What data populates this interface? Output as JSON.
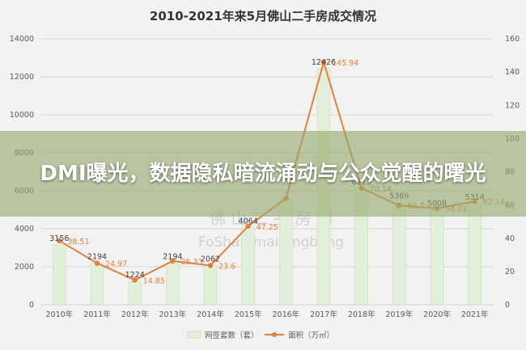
{
  "colors": {
    "bar": "#e2efda",
    "bar_edge": "#c9deb8",
    "line": "#e0813b",
    "grid": "#d4d4d4",
    "banner": "#96aa6e"
  },
  "overlay": {
    "headline": "DMI曝光，数据隐私暗流涌动与公众觉醒的曙光"
  },
  "watermark": {
    "line1": "佛 山 二 手 房 网",
    "line2": "FoShan maifangbang"
  },
  "chart_data": {
    "type": "bar",
    "title": "2010-2021年来5月佛山二手房成交情况",
    "categories": [
      "2010年",
      "2011年",
      "2012年",
      "2013年",
      "2014年",
      "2015年",
      "2016年",
      "2017年",
      "2018年",
      "2019年",
      "2020年",
      "2021年"
    ],
    "series": [
      {
        "name": "网签套数（套）",
        "type": "bar",
        "axis": "left",
        "values": [
          3156,
          2194,
          1224,
          2194,
          2062,
          4064,
          5600,
          12426,
          6113,
          5389,
          5008,
          5314
        ],
        "labels": [
          "3156",
          "2194",
          "1224",
          "2194",
          "2062",
          "4064",
          "",
          "12426",
          "6113",
          "5389",
          "5008",
          "5314"
        ]
      },
      {
        "name": "面积（万㎡）",
        "type": "line",
        "axis": "right",
        "values": [
          38.51,
          24.97,
          14.85,
          26.33,
          23.6,
          47.25,
          64.0,
          145.94,
          70.14,
          59.7,
          58.02,
          62.14
        ],
        "labels": [
          "38.51",
          "24.97",
          "14.85",
          "26.33",
          "23.6",
          "47.25",
          "",
          "145.94",
          "70.14",
          "59.7",
          "58.02",
          "62.14"
        ]
      }
    ],
    "y_left": {
      "range": [
        0,
        14000
      ],
      "ticks": [
        "0",
        "2000",
        "4000",
        "6000",
        "8000",
        "10000",
        "12000",
        "14000"
      ]
    },
    "y_right": {
      "range": [
        0,
        160
      ],
      "ticks": [
        "0",
        "20",
        "40",
        "60",
        "80",
        "100",
        "120",
        "140",
        "160"
      ]
    },
    "grid": true,
    "legend_placement": "bottom"
  }
}
